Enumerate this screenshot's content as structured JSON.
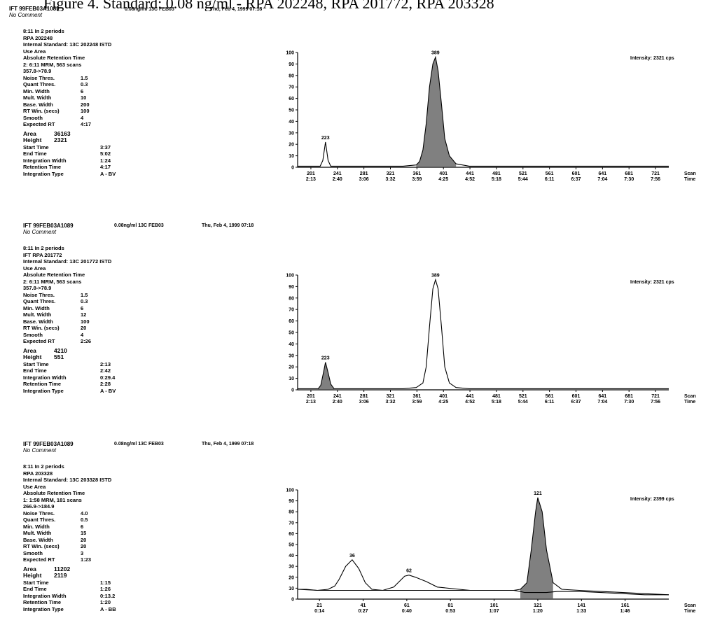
{
  "page": {
    "title": "Figure 4.   Standard:  0.08 ng/ml - RPA 202248, RPA 201772, RPA 203328"
  },
  "panels": [
    {
      "file_id": "IFT  99FEB03A1089",
      "comment": "No Comment",
      "concentration": "0.08ng/ml  13C  FEB03",
      "date": "Thu, Feb 4, 1999 07:18",
      "params": {
        "periods": "8:11  In  2  periods",
        "compound": "RPA  202248",
        "internal_standard": "Internal Standard:  13C  202248  ISTD",
        "use_area": "Use Area",
        "abs_ret": "Absolute Retention Time",
        "mrm": "2:  6:11 MRM,  563  scans",
        "mass": "357.8->78.9",
        "kv": [
          {
            "k": "Noise Thres.",
            "v": "1.5"
          },
          {
            "k": "Quant Thres.",
            "v": "0.3"
          },
          {
            "k": "Min. Width",
            "v": "6"
          },
          {
            "k": "Mult. Width",
            "v": "10"
          },
          {
            "k": "Base. Width",
            "v": "200"
          },
          {
            "k": "RT Win. (secs)",
            "v": "100"
          },
          {
            "k": "Smooth",
            "v": "4"
          },
          {
            "k": "Expected RT",
            "v": "4:17"
          }
        ],
        "area_label": "Area",
        "area": "36163",
        "height_label": "Height",
        "height": "2321",
        "tm": [
          {
            "k": "Start Time",
            "v": "3:37"
          },
          {
            "k": "End Time",
            "v": "5:02"
          },
          {
            "k": "Integration Width",
            "v": "1:24"
          },
          {
            "k": "Retention Time",
            "v": "4:17"
          },
          {
            "k": "Integration Type",
            "v": "A - BV"
          }
        ]
      },
      "intensity_text": "Intensity:  2321  cps",
      "axis_title": "Scan\nTime"
    },
    {
      "file_id": "IFT  99FEB03A1089",
      "comment": "No Comment",
      "concentration": "0.08ng/ml  13C  FEB03",
      "date": "Thu, Feb 4, 1999 07:18",
      "params": {
        "periods": "8:11  In  2  periods",
        "compound": "IFT  RPA  201772",
        "internal_standard": "Internal Standard:  13C  201772  ISTD",
        "use_area": "Use Area",
        "abs_ret": "Absolute Retention Time",
        "mrm": "2:  6:11 MRM,  563  scans",
        "mass": "357.8->78.9",
        "kv": [
          {
            "k": "Noise Thres.",
            "v": "1.5"
          },
          {
            "k": "Quant Thres.",
            "v": "0.3"
          },
          {
            "k": "Min. Width",
            "v": "6"
          },
          {
            "k": "Mult. Width",
            "v": "12"
          },
          {
            "k": "Base. Width",
            "v": "100"
          },
          {
            "k": "RT Win. (secs)",
            "v": "20"
          },
          {
            "k": "Smooth",
            "v": "4"
          },
          {
            "k": "Expected RT",
            "v": "2:26"
          }
        ],
        "area_label": "Area",
        "area": "4210",
        "height_label": "Height",
        "height": "551",
        "tm": [
          {
            "k": "Start Time",
            "v": "2:13"
          },
          {
            "k": "End Time",
            "v": "2:42"
          },
          {
            "k": "Integration Width",
            "v": "0:29.4"
          },
          {
            "k": "Retention Time",
            "v": "2:28"
          },
          {
            "k": "Integration Type",
            "v": "A - BV"
          }
        ]
      },
      "intensity_text": "Intensity:  2321  cps",
      "axis_title": "Scan\nTime"
    },
    {
      "file_id": "IFT  99FEB03A1089",
      "comment": "No Comment",
      "concentration": "0.08ng/ml  13C  FEB03",
      "date": "Thu, Feb 4, 1999 07:18",
      "params": {
        "periods": "8:11  In  2  periods",
        "compound": "RPA  203328",
        "internal_standard": "Internal Standard:  13C  203328  ISTD",
        "use_area": "Use Area",
        "abs_ret": "Absolute Retention Time",
        "mrm": "1:  1:58 MRM,  181  scans",
        "mass": "266.9->184.9",
        "kv": [
          {
            "k": "Noise Thres.",
            "v": "4.0"
          },
          {
            "k": "Quant Thres.",
            "v": "0.5"
          },
          {
            "k": "Min. Width",
            "v": "6"
          },
          {
            "k": "Mult. Width",
            "v": "15"
          },
          {
            "k": "Base. Width",
            "v": "20"
          },
          {
            "k": "RT Win. (secs)",
            "v": "20"
          },
          {
            "k": "Smooth",
            "v": "3"
          },
          {
            "k": "Expected RT",
            "v": "1:23"
          }
        ],
        "area_label": "Area",
        "area": "11202",
        "height_label": "Height",
        "height": "2119",
        "tm": [
          {
            "k": "Start Time",
            "v": "1:15"
          },
          {
            "k": "End Time",
            "v": "1:26"
          },
          {
            "k": "Integration Width",
            "v": "0:13.2"
          },
          {
            "k": "Retention Time",
            "v": "1:20"
          },
          {
            "k": "Integration Type",
            "v": "A - BB"
          }
        ]
      },
      "intensity_text": "Intensity:  2399  cps",
      "axis_title": "Scan\nTime"
    }
  ],
  "chart_data": [
    {
      "type": "line",
      "y_ticks": [
        "100",
        "90",
        "80",
        "70",
        "60",
        "50",
        "40",
        "30",
        "20",
        "10",
        "0"
      ],
      "ylim": [
        0,
        100
      ],
      "xlim": [
        181,
        741
      ],
      "x_scan_ticks": [
        "201",
        "241",
        "281",
        "321",
        "361",
        "401",
        "441",
        "481",
        "521",
        "561",
        "601",
        "641",
        "681",
        "721"
      ],
      "x_time_ticks": [
        "2:13",
        "2:40",
        "3:06",
        "3:32",
        "3:59",
        "4:25",
        "4:52",
        "5:18",
        "5:44",
        "6:11",
        "6:37",
        "7:04",
        "7:30",
        "7:56"
      ],
      "peak_labels": [
        {
          "x": 223,
          "y": 22,
          "text": "223"
        },
        {
          "x": 389,
          "y": 96,
          "text": "389"
        }
      ],
      "series": [
        {
          "x": [
            181,
            200,
            215,
            219,
            223,
            227,
            231,
            240,
            260,
            300,
            340,
            360,
            365,
            370,
            375,
            380,
            385,
            389,
            393,
            398,
            403,
            410,
            420,
            440,
            480,
            520,
            560,
            600,
            640,
            680,
            720,
            741
          ],
          "y": [
            1,
            1,
            1,
            6,
            22,
            6,
            1,
            1,
            1,
            1,
            1,
            2,
            5,
            15,
            38,
            70,
            90,
            96,
            84,
            55,
            25,
            10,
            3,
            1,
            1,
            1,
            1,
            1,
            1,
            1,
            1,
            1
          ]
        }
      ],
      "shaded": [
        [
          360,
          420
        ]
      ]
    },
    {
      "type": "line",
      "y_ticks": [
        "100",
        "90",
        "80",
        "70",
        "60",
        "50",
        "40",
        "30",
        "20",
        "10",
        "0"
      ],
      "ylim": [
        0,
        100
      ],
      "xlim": [
        181,
        741
      ],
      "x_scan_ticks": [
        "201",
        "241",
        "281",
        "321",
        "361",
        "401",
        "441",
        "481",
        "521",
        "561",
        "601",
        "641",
        "681",
        "721"
      ],
      "x_time_ticks": [
        "2:13",
        "2:40",
        "3:06",
        "3:32",
        "3:59",
        "4:25",
        "4:52",
        "5:18",
        "5:44",
        "6:11",
        "6:37",
        "7:04",
        "7:30",
        "7:56"
      ],
      "peak_labels": [
        {
          "x": 223,
          "y": 24,
          "text": "223"
        },
        {
          "x": 389,
          "y": 96,
          "text": "389"
        }
      ],
      "series": [
        {
          "x": [
            181,
            200,
            212,
            216,
            220,
            223,
            227,
            231,
            236,
            245,
            260,
            300,
            340,
            360,
            370,
            375,
            380,
            385,
            389,
            393,
            398,
            403,
            410,
            420,
            440,
            480,
            520,
            560,
            600,
            640,
            680,
            720,
            741
          ],
          "y": [
            1,
            1,
            1,
            4,
            15,
            24,
            15,
            5,
            1,
            1,
            1,
            1,
            1,
            2,
            6,
            20,
            55,
            88,
            96,
            88,
            55,
            20,
            6,
            2,
            1,
            1,
            1,
            1,
            1,
            1,
            1,
            1,
            1
          ]
        }
      ],
      "shaded": [
        [
          212,
          240
        ]
      ]
    },
    {
      "type": "line",
      "y_ticks": [
        "100",
        "90",
        "80",
        "70",
        "60",
        "50",
        "40",
        "30",
        "20",
        "10",
        "0"
      ],
      "ylim": [
        0,
        100
      ],
      "xlim": [
        11,
        181
      ],
      "x_scan_ticks": [
        "21",
        "41",
        "61",
        "81",
        "101",
        "121",
        "141",
        "161"
      ],
      "x_time_ticks": [
        "0:14",
        "0:27",
        "0:40",
        "0:53",
        "1:07",
        "1:20",
        "1:33",
        "1:46"
      ],
      "peak_labels": [
        {
          "x": 36,
          "y": 36,
          "text": "36"
        },
        {
          "x": 62,
          "y": 22,
          "text": "62"
        },
        {
          "x": 121,
          "y": 93,
          "text": "121"
        }
      ],
      "series": [
        {
          "x": [
            11,
            15,
            20,
            25,
            28,
            30,
            33,
            36,
            39,
            42,
            45,
            50,
            55,
            58,
            60,
            62,
            65,
            70,
            75,
            80,
            85,
            90,
            95,
            100,
            105,
            110,
            113,
            116,
            118,
            120,
            121,
            123,
            125,
            128,
            132,
            140,
            150,
            160,
            170,
            181
          ],
          "y": [
            9,
            9,
            8,
            9,
            12,
            18,
            30,
            36,
            28,
            15,
            9,
            8,
            11,
            17,
            21,
            22,
            20,
            16,
            11,
            10,
            9,
            8,
            8,
            8,
            8,
            8,
            9,
            15,
            45,
            80,
            93,
            80,
            45,
            15,
            9,
            8,
            7,
            6,
            5,
            4
          ]
        },
        {
          "x": [
            11,
            20,
            30,
            40,
            50,
            60,
            70,
            80,
            90,
            100,
            110,
            113,
            115,
            120,
            125,
            130,
            140,
            150,
            160,
            170,
            181
          ],
          "y": [
            9,
            8,
            8,
            8,
            8,
            8,
            8,
            8,
            8,
            8,
            8,
            7,
            6,
            6,
            6,
            7,
            7,
            6,
            5,
            4,
            4
          ]
        }
      ],
      "shaded": [
        [
          113,
          130
        ]
      ]
    }
  ]
}
